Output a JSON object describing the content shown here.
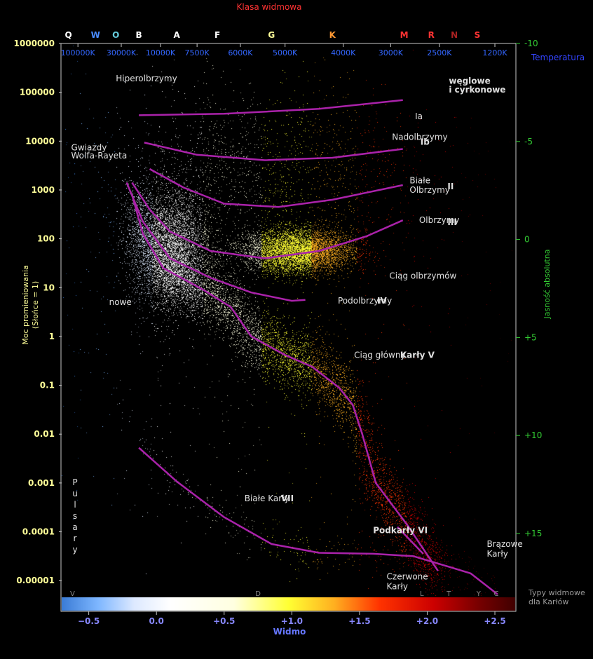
{
  "chart_data": {
    "type": "scatter",
    "title": "Klasa widmowa",
    "xlabel": "Widmo",
    "ylabel_left": [
      "Moc promieniowania",
      "(Słońce = 1)"
    ],
    "ylabel_right": "Jasność absolutna",
    "temperature_label": "Temperatura",
    "dwarf_types_label": [
      "Typy widmowe",
      "dla Karłów"
    ],
    "xlim": [
      -0.7,
      2.65
    ],
    "ylim_luminosity_log10": [
      -5.6,
      6
    ],
    "ylim_absolute_magnitude": [
      -10,
      18.9
    ],
    "x_ticks": [
      {
        "value": -0.5,
        "label": "−0.5"
      },
      {
        "value": 0.0,
        "label": "0.0"
      },
      {
        "value": 0.5,
        "label": "+0.5"
      },
      {
        "value": 1.0,
        "label": "+1.0"
      },
      {
        "value": 1.5,
        "label": "+1.5"
      },
      {
        "value": 2.0,
        "label": "+2.0"
      },
      {
        "value": 2.5,
        "label": "+2.5"
      }
    ],
    "y_ticks_left": [
      {
        "value": 1000000,
        "label": "1000000"
      },
      {
        "value": 100000,
        "label": "100000"
      },
      {
        "value": 10000,
        "label": "10000"
      },
      {
        "value": 1000,
        "label": "1000"
      },
      {
        "value": 100,
        "label": "100"
      },
      {
        "value": 10,
        "label": "10"
      },
      {
        "value": 1,
        "label": "1"
      },
      {
        "value": 0.1,
        "label": "0.1"
      },
      {
        "value": 0.01,
        "label": "0.01"
      },
      {
        "value": 0.001,
        "label": "0.001"
      },
      {
        "value": 0.0001,
        "label": "0.0001"
      },
      {
        "value": 1e-05,
        "label": "0.00001"
      }
    ],
    "y_ticks_right": [
      {
        "value": -10,
        "label": "-10"
      },
      {
        "value": -5,
        "label": "-5"
      },
      {
        "value": 0,
        "label": "0"
      },
      {
        "value": 5,
        "label": "+5"
      },
      {
        "value": 10,
        "label": "+10"
      },
      {
        "value": 15,
        "label": "+15"
      }
    ],
    "spectral_classes": [
      {
        "x": -0.65,
        "label": "Q",
        "color": "#ffffff"
      },
      {
        "x": -0.45,
        "label": "W",
        "color": "#4a8cff"
      },
      {
        "x": -0.3,
        "label": "O",
        "color": "#66ccdd"
      },
      {
        "x": -0.13,
        "label": "B",
        "color": "#ffffff"
      },
      {
        "x": 0.15,
        "label": "A",
        "color": "#ffffff"
      },
      {
        "x": 0.45,
        "label": "F",
        "color": "#ffffff"
      },
      {
        "x": 0.85,
        "label": "G",
        "color": "#ffff99"
      },
      {
        "x": 1.3,
        "label": "K",
        "color": "#ff9933"
      },
      {
        "x": 1.83,
        "label": "M",
        "color": "#ff3333"
      },
      {
        "x": 2.03,
        "label": "R",
        "color": "#ff3333"
      },
      {
        "x": 2.2,
        "label": "N",
        "color": "#aa2222"
      },
      {
        "x": 2.37,
        "label": "S",
        "color": "#ff3333"
      }
    ],
    "temperatures": [
      {
        "x": -0.58,
        "label": "100000K"
      },
      {
        "x": -0.26,
        "label": "30000K"
      },
      {
        "x": 0.03,
        "label": "10000K"
      },
      {
        "x": 0.3,
        "label": "7500K"
      },
      {
        "x": 0.62,
        "label": "6000K"
      },
      {
        "x": 0.95,
        "label": "5000K"
      },
      {
        "x": 1.38,
        "label": "4000K"
      },
      {
        "x": 1.73,
        "label": "3000K"
      },
      {
        "x": 2.09,
        "label": "2500K"
      },
      {
        "x": 2.5,
        "label": "1200K"
      }
    ],
    "dwarf_spectral_types": [
      {
        "x": -0.62,
        "label": "V"
      },
      {
        "x": 0.75,
        "label": "D"
      },
      {
        "x": 1.96,
        "label": "L"
      },
      {
        "x": 2.16,
        "label": "T"
      },
      {
        "x": 2.38,
        "label": "Y"
      },
      {
        "x": 2.51,
        "label": "C"
      }
    ],
    "region_labels": [
      {
        "x": -0.3,
        "y": 5.28,
        "text": "Hiperolbrzymy",
        "bold": false
      },
      {
        "x": 2.16,
        "y": 5.23,
        "text": "węglowe",
        "bold": true
      },
      {
        "x": 2.16,
        "y": 5.05,
        "text": "i cyrkonowe",
        "bold": true
      },
      {
        "x": 1.91,
        "y": 4.51,
        "text": "Ia",
        "bold": false
      },
      {
        "x": 1.74,
        "y": 4.08,
        "text": "Nadolbrzymy",
        "bold": false
      },
      {
        "x": 1.95,
        "y": 3.98,
        "text": "Ib",
        "bold": true
      },
      {
        "x": -0.63,
        "y": 3.87,
        "text": "Gwiazdy",
        "bold": false
      },
      {
        "x": -0.63,
        "y": 3.7,
        "text": "Wolfa-Rayeta",
        "bold": false
      },
      {
        "x": 1.87,
        "y": 3.19,
        "text": "Białe",
        "bold": false
      },
      {
        "x": 1.87,
        "y": 3.0,
        "text": "Olbrzymy",
        "bold": false
      },
      {
        "x": 2.15,
        "y": 3.07,
        "text": "II",
        "bold": true
      },
      {
        "x": 1.94,
        "y": 2.38,
        "text": "Olbrzymy",
        "bold": false
      },
      {
        "x": 2.15,
        "y": 2.34,
        "text": "III",
        "bold": true
      },
      {
        "x": 1.72,
        "y": 1.24,
        "text": "Ciąg olbrzymów",
        "bold": false
      },
      {
        "x": -0.35,
        "y": 0.7,
        "text": "nowe",
        "bold": false
      },
      {
        "x": 1.34,
        "y": 0.73,
        "text": "Podolbrzymy",
        "bold": false
      },
      {
        "x": 1.63,
        "y": 0.73,
        "text": "IV",
        "bold": true
      },
      {
        "x": 1.46,
        "y": -0.38,
        "text": "Ciąg główny",
        "bold": false
      },
      {
        "x": 1.8,
        "y": -0.38,
        "text": "Karły V",
        "bold": true
      },
      {
        "x": 0.65,
        "y": -3.32,
        "text": "Białe Karły",
        "bold": false
      },
      {
        "x": 0.92,
        "y": -3.32,
        "text": "VII",
        "bold": true
      },
      {
        "x": 1.6,
        "y": -3.97,
        "text": "Podkarły VI",
        "bold": true
      },
      {
        "x": 2.44,
        "y": -4.25,
        "text": "Brązowe",
        "bold": false
      },
      {
        "x": 2.44,
        "y": -4.45,
        "text": "Karły",
        "bold": false
      },
      {
        "x": 1.7,
        "y": -4.92,
        "text": "Czerwone",
        "bold": false
      },
      {
        "x": 1.7,
        "y": -5.12,
        "text": "Karły",
        "bold": false
      }
    ],
    "pulsar_label": [
      "P",
      "u",
      "l",
      "s",
      "a",
      "r",
      "y"
    ],
    "luminosity_class_lines": [
      {
        "name": "Ia",
        "points": [
          [
            -0.13,
            4.53
          ],
          [
            0.5,
            4.56
          ],
          [
            1.2,
            4.66
          ],
          [
            1.82,
            4.84
          ]
        ]
      },
      {
        "name": "Ib",
        "points": [
          [
            -0.09,
            3.97
          ],
          [
            0.3,
            3.72
          ],
          [
            0.8,
            3.61
          ],
          [
            1.3,
            3.66
          ],
          [
            1.82,
            3.84
          ]
        ]
      },
      {
        "name": "II",
        "points": [
          [
            -0.05,
            3.43
          ],
          [
            0.2,
            3.05
          ],
          [
            0.5,
            2.72
          ],
          [
            0.9,
            2.65
          ],
          [
            1.3,
            2.8
          ],
          [
            1.82,
            3.1
          ]
        ]
      },
      {
        "name": "III",
        "points": [
          [
            -0.18,
            3.15
          ],
          [
            -0.05,
            2.6
          ],
          [
            0.1,
            2.15
          ],
          [
            0.4,
            1.75
          ],
          [
            0.8,
            1.6
          ],
          [
            1.2,
            1.75
          ],
          [
            1.55,
            2.05
          ],
          [
            1.82,
            2.38
          ]
        ]
      },
      {
        "name": "IV",
        "points": [
          [
            -0.22,
            3.15
          ],
          [
            -0.1,
            2.35
          ],
          [
            0.1,
            1.6
          ],
          [
            0.4,
            1.2
          ],
          [
            0.7,
            0.9
          ],
          [
            1.0,
            0.73
          ],
          [
            1.1,
            0.75
          ]
        ]
      },
      {
        "name": "V",
        "points": [
          [
            -0.18,
            2.9
          ],
          [
            -0.1,
            2.1
          ],
          [
            0.05,
            1.4
          ],
          [
            0.35,
            0.95
          ],
          [
            0.55,
            0.6
          ],
          [
            0.7,
            0.0
          ],
          [
            0.95,
            -0.38
          ],
          [
            1.15,
            -0.62
          ],
          [
            1.35,
            -1.05
          ],
          [
            1.45,
            -1.4
          ],
          [
            1.52,
            -2.0
          ],
          [
            1.62,
            -3.0
          ],
          [
            1.85,
            -3.85
          ],
          [
            2.08,
            -4.8
          ]
        ]
      },
      {
        "name": "VI",
        "points": [
          [
            1.78,
            -3.9
          ],
          [
            1.97,
            -4.45
          ]
        ]
      },
      {
        "name": "VII",
        "points": [
          [
            -0.13,
            -2.28
          ],
          [
            0.15,
            -2.97
          ],
          [
            0.5,
            -3.7
          ],
          [
            0.85,
            -4.25
          ],
          [
            1.2,
            -4.43
          ],
          [
            1.6,
            -4.45
          ],
          [
            1.9,
            -4.5
          ],
          [
            2.08,
            -4.65
          ],
          [
            2.32,
            -4.85
          ],
          [
            2.52,
            -5.28
          ]
        ]
      }
    ],
    "star_populations": [
      {
        "name": "main-sequence",
        "count": 9000,
        "track": "V",
        "spread": 0.32
      },
      {
        "name": "giants",
        "count": 6000,
        "center": [
          1.05,
          1.75
        ],
        "sd": [
          0.2,
          0.22
        ]
      },
      {
        "name": "supergiants",
        "count": 1500,
        "center": [
          0.8,
          3.4
        ],
        "sd": [
          0.6,
          0.8
        ]
      },
      {
        "name": "hot-diagonal",
        "count": 5000,
        "center": [
          0.1,
          1.8
        ],
        "sd": [
          0.15,
          0.6
        ]
      },
      {
        "name": "white-dwarfs",
        "count": 450,
        "track": "VII",
        "spread": 0.25
      },
      {
        "name": "halo",
        "count": 900,
        "center": [
          0.6,
          1.0
        ],
        "sd": [
          0.9,
          2.5
        ]
      }
    ]
  },
  "colorbar": {
    "stops": [
      {
        "offset": 0.0,
        "color": "#3a7bd5"
      },
      {
        "offset": 0.08,
        "color": "#7db6ff"
      },
      {
        "offset": 0.16,
        "color": "#dde9ff"
      },
      {
        "offset": 0.24,
        "color": "#ffffff"
      },
      {
        "offset": 0.38,
        "color": "#ffffe0"
      },
      {
        "offset": 0.5,
        "color": "#ffff33"
      },
      {
        "offset": 0.6,
        "color": "#ffb020"
      },
      {
        "offset": 0.7,
        "color": "#ff3300"
      },
      {
        "offset": 0.82,
        "color": "#cc0000"
      },
      {
        "offset": 0.92,
        "color": "#770000"
      },
      {
        "offset": 1.0,
        "color": "#400000"
      }
    ]
  },
  "colors": {
    "background": "#000000",
    "axis": "#c8c8c8",
    "left_ticks": "#ffff99",
    "right_ticks": "#33cc33",
    "bottom_ticks": "#8888ff",
    "temperature": "#3366ff",
    "title": "#ff3333",
    "curves": "#aa22aa",
    "label_text": "#e0e0e0",
    "dwarf_types": "#888888"
  }
}
